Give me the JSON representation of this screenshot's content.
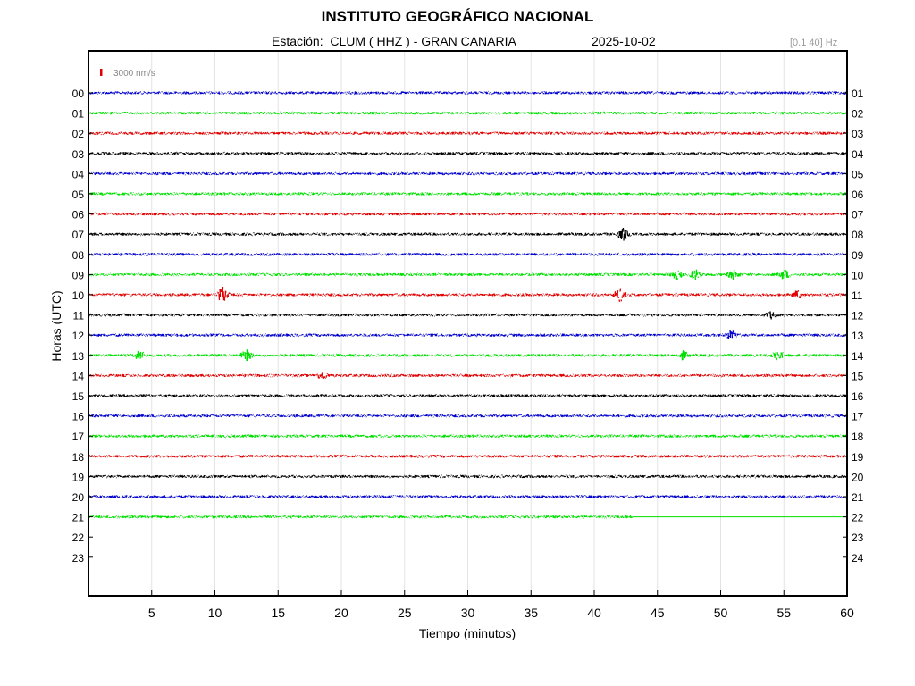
{
  "header": {
    "title": "INSTITUTO GEOGRÁFICO NACIONAL",
    "station_label": "Estación:  CLUM ( HHZ ) - GRAN CANARIA",
    "date": "2025-10-02",
    "filter": "[0.1 40] Hz"
  },
  "chart_data": {
    "type": "line",
    "title": "INSTITUTO GEOGRÁFICO NACIONAL",
    "xlabel": "Tiempo (minutos)",
    "ylabel": "Horas (UTC)",
    "xlim": [
      0,
      60
    ],
    "x_ticks": [
      "5",
      "10",
      "15",
      "20",
      "25",
      "30",
      "35",
      "40",
      "45",
      "50",
      "55",
      "60"
    ],
    "y_ticks_left": [
      "00",
      "01",
      "02",
      "03",
      "04",
      "05",
      "06",
      "07",
      "08",
      "09",
      "10",
      "11",
      "12",
      "13",
      "14",
      "15",
      "16",
      "17",
      "18",
      "19",
      "20",
      "21",
      "22",
      "23"
    ],
    "y_ticks_right": [
      "01",
      "02",
      "03",
      "04",
      "05",
      "06",
      "07",
      "08",
      "09",
      "10",
      "11",
      "12",
      "13",
      "14",
      "15",
      "16",
      "17",
      "18",
      "19",
      "20",
      "21",
      "22",
      "23",
      "24"
    ],
    "grid": true,
    "scale_bar": "3000 nm/s",
    "trace_colors": [
      "#0000cc",
      "#00e000",
      "#e00000",
      "#000000"
    ],
    "trace_end_minutes": [
      60,
      60,
      60,
      60,
      60,
      60,
      60,
      60,
      60,
      60,
      60,
      60,
      60,
      60,
      60,
      60,
      60,
      60,
      60,
      60,
      60,
      43,
      0,
      0
    ],
    "events": [
      {
        "hour": 7,
        "minute": 42.3,
        "amp": 2.2
      },
      {
        "hour": 9,
        "minute": 46.5,
        "amp": 1.6
      },
      {
        "hour": 9,
        "minute": 48,
        "amp": 1.8
      },
      {
        "hour": 9,
        "minute": 51,
        "amp": 1.5
      },
      {
        "hour": 9,
        "minute": 55,
        "amp": 1.8
      },
      {
        "hour": 10,
        "minute": 10.6,
        "amp": 3.0
      },
      {
        "hour": 10,
        "minute": 42,
        "amp": 2.4
      },
      {
        "hour": 10,
        "minute": 56,
        "amp": 1.4
      },
      {
        "hour": 11,
        "minute": 54,
        "amp": 1.3
      },
      {
        "hour": 12,
        "minute": 50.8,
        "amp": 1.6
      },
      {
        "hour": 13,
        "minute": 4,
        "amp": 1.6
      },
      {
        "hour": 13,
        "minute": 12.5,
        "amp": 1.8
      },
      {
        "hour": 13,
        "minute": 47,
        "amp": 1.5
      },
      {
        "hour": 13,
        "minute": 54.5,
        "amp": 1.7
      },
      {
        "hour": 14,
        "minute": 18.5,
        "amp": 1.4
      }
    ]
  }
}
